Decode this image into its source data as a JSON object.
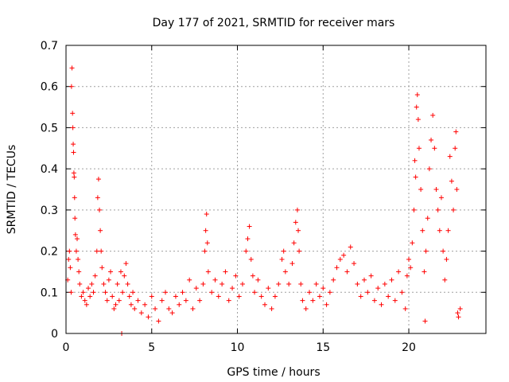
{
  "chart_data": {
    "type": "scatter",
    "title": "Day 177 of 2021, SRMTID for receiver mars",
    "xlabel": "GPS time / hours",
    "ylabel": "SRMTID / TECUs",
    "xlim": [
      0,
      24.5
    ],
    "ylim": [
      0,
      0.7
    ],
    "xticks": [
      0,
      5,
      10,
      15,
      20
    ],
    "xtick_labels": [
      "0",
      "5",
      "10",
      "15",
      "20"
    ],
    "yticks": [
      0,
      0.1,
      0.2,
      0.3,
      0.4,
      0.5,
      0.6,
      0.7
    ],
    "ytick_labels": [
      "0",
      "0.1",
      "0.2",
      "0.3",
      "0.4",
      "0.5",
      "0.6",
      "0.7"
    ],
    "grid": true,
    "marker": "+",
    "series_color": "#ff0000",
    "series": [
      {
        "name": "SRMTID",
        "points": [
          [
            0.1,
            0.13
          ],
          [
            0.15,
            0.18
          ],
          [
            0.2,
            0.2
          ],
          [
            0.25,
            0.16
          ],
          [
            0.3,
            0.1
          ],
          [
            0.32,
            0.6
          ],
          [
            0.35,
            0.645
          ],
          [
            0.38,
            0.535
          ],
          [
            0.4,
            0.5
          ],
          [
            0.42,
            0.46
          ],
          [
            0.44,
            0.44
          ],
          [
            0.46,
            0.39
          ],
          [
            0.48,
            0.38
          ],
          [
            0.5,
            0.33
          ],
          [
            0.52,
            0.28
          ],
          [
            0.55,
            0.24
          ],
          [
            0.6,
            0.2
          ],
          [
            0.65,
            0.23
          ],
          [
            0.7,
            0.18
          ],
          [
            0.75,
            0.15
          ],
          [
            0.8,
            0.12
          ],
          [
            0.9,
            0.09
          ],
          [
            1.0,
            0.1
          ],
          [
            1.1,
            0.08
          ],
          [
            1.2,
            0.07
          ],
          [
            1.3,
            0.11
          ],
          [
            1.4,
            0.09
          ],
          [
            1.5,
            0.12
          ],
          [
            1.6,
            0.1
          ],
          [
            1.7,
            0.14
          ],
          [
            1.8,
            0.2
          ],
          [
            1.85,
            0.33
          ],
          [
            1.9,
            0.375
          ],
          [
            1.95,
            0.3
          ],
          [
            2.0,
            0.25
          ],
          [
            2.05,
            0.2
          ],
          [
            2.1,
            0.16
          ],
          [
            2.2,
            0.12
          ],
          [
            2.3,
            0.1
          ],
          [
            2.4,
            0.08
          ],
          [
            2.5,
            0.13
          ],
          [
            2.6,
            0.15
          ],
          [
            2.7,
            0.09
          ],
          [
            2.8,
            0.06
          ],
          [
            2.9,
            0.07
          ],
          [
            3.0,
            0.12
          ],
          [
            3.1,
            0.08
          ],
          [
            3.2,
            0.15
          ],
          [
            3.25,
            0.0
          ],
          [
            3.3,
            0.1
          ],
          [
            3.4,
            0.14
          ],
          [
            3.5,
            0.17
          ],
          [
            3.6,
            0.12
          ],
          [
            3.7,
            0.09
          ],
          [
            3.8,
            0.07
          ],
          [
            3.9,
            0.1
          ],
          [
            4.0,
            0.06
          ],
          [
            4.2,
            0.08
          ],
          [
            4.4,
            0.05
          ],
          [
            4.6,
            0.07
          ],
          [
            4.8,
            0.04
          ],
          [
            5.0,
            0.09
          ],
          [
            5.2,
            0.06
          ],
          [
            5.4,
            0.03
          ],
          [
            5.6,
            0.08
          ],
          [
            5.8,
            0.1
          ],
          [
            6.0,
            0.06
          ],
          [
            6.2,
            0.05
          ],
          [
            6.4,
            0.09
          ],
          [
            6.6,
            0.07
          ],
          [
            6.8,
            0.1
          ],
          [
            7.0,
            0.08
          ],
          [
            7.2,
            0.13
          ],
          [
            7.4,
            0.06
          ],
          [
            7.6,
            0.11
          ],
          [
            7.8,
            0.08
          ],
          [
            8.0,
            0.12
          ],
          [
            8.1,
            0.2
          ],
          [
            8.15,
            0.25
          ],
          [
            8.2,
            0.29
          ],
          [
            8.25,
            0.22
          ],
          [
            8.3,
            0.15
          ],
          [
            8.5,
            0.1
          ],
          [
            8.7,
            0.13
          ],
          [
            8.9,
            0.09
          ],
          [
            9.1,
            0.12
          ],
          [
            9.3,
            0.15
          ],
          [
            9.5,
            0.08
          ],
          [
            9.7,
            0.11
          ],
          [
            9.9,
            0.14
          ],
          [
            10.1,
            0.09
          ],
          [
            10.3,
            0.12
          ],
          [
            10.5,
            0.2
          ],
          [
            10.6,
            0.23
          ],
          [
            10.7,
            0.26
          ],
          [
            10.8,
            0.18
          ],
          [
            10.9,
            0.14
          ],
          [
            11.0,
            0.1
          ],
          [
            11.2,
            0.13
          ],
          [
            11.4,
            0.09
          ],
          [
            11.6,
            0.07
          ],
          [
            11.8,
            0.11
          ],
          [
            12.0,
            0.06
          ],
          [
            12.2,
            0.09
          ],
          [
            12.4,
            0.12
          ],
          [
            12.6,
            0.18
          ],
          [
            12.7,
            0.2
          ],
          [
            12.8,
            0.15
          ],
          [
            13.0,
            0.12
          ],
          [
            13.2,
            0.17
          ],
          [
            13.3,
            0.22
          ],
          [
            13.4,
            0.27
          ],
          [
            13.5,
            0.3
          ],
          [
            13.55,
            0.25
          ],
          [
            13.6,
            0.2
          ],
          [
            13.7,
            0.12
          ],
          [
            13.8,
            0.08
          ],
          [
            14.0,
            0.06
          ],
          [
            14.2,
            0.1
          ],
          [
            14.4,
            0.08
          ],
          [
            14.6,
            0.12
          ],
          [
            14.8,
            0.09
          ],
          [
            15.0,
            0.11
          ],
          [
            15.2,
            0.07
          ],
          [
            15.4,
            0.1
          ],
          [
            15.6,
            0.13
          ],
          [
            15.8,
            0.16
          ],
          [
            16.0,
            0.18
          ],
          [
            16.2,
            0.19
          ],
          [
            16.4,
            0.15
          ],
          [
            16.6,
            0.21
          ],
          [
            16.8,
            0.17
          ],
          [
            17.0,
            0.12
          ],
          [
            17.2,
            0.09
          ],
          [
            17.4,
            0.13
          ],
          [
            17.6,
            0.1
          ],
          [
            17.8,
            0.14
          ],
          [
            18.0,
            0.08
          ],
          [
            18.2,
            0.11
          ],
          [
            18.4,
            0.07
          ],
          [
            18.6,
            0.12
          ],
          [
            18.8,
            0.09
          ],
          [
            19.0,
            0.13
          ],
          [
            19.2,
            0.08
          ],
          [
            19.4,
            0.15
          ],
          [
            19.6,
            0.1
          ],
          [
            19.8,
            0.06
          ],
          [
            19.9,
            0.14
          ],
          [
            20.0,
            0.18
          ],
          [
            20.1,
            0.16
          ],
          [
            20.2,
            0.22
          ],
          [
            20.3,
            0.3
          ],
          [
            20.35,
            0.42
          ],
          [
            20.4,
            0.38
          ],
          [
            20.45,
            0.55
          ],
          [
            20.5,
            0.58
          ],
          [
            20.55,
            0.52
          ],
          [
            20.6,
            0.45
          ],
          [
            20.7,
            0.35
          ],
          [
            20.8,
            0.25
          ],
          [
            20.9,
            0.15
          ],
          [
            20.95,
            0.03
          ],
          [
            21.0,
            0.2
          ],
          [
            21.1,
            0.28
          ],
          [
            21.2,
            0.4
          ],
          [
            21.3,
            0.47
          ],
          [
            21.4,
            0.53
          ],
          [
            21.5,
            0.45
          ],
          [
            21.6,
            0.35
          ],
          [
            21.7,
            0.3
          ],
          [
            21.8,
            0.25
          ],
          [
            21.9,
            0.33
          ],
          [
            22.0,
            0.2
          ],
          [
            22.1,
            0.13
          ],
          [
            22.2,
            0.18
          ],
          [
            22.3,
            0.25
          ],
          [
            22.4,
            0.43
          ],
          [
            22.5,
            0.37
          ],
          [
            22.6,
            0.3
          ],
          [
            22.7,
            0.45
          ],
          [
            22.75,
            0.49
          ],
          [
            22.8,
            0.35
          ],
          [
            22.85,
            0.05
          ],
          [
            22.9,
            0.04
          ],
          [
            23.0,
            0.06
          ]
        ]
      }
    ]
  }
}
